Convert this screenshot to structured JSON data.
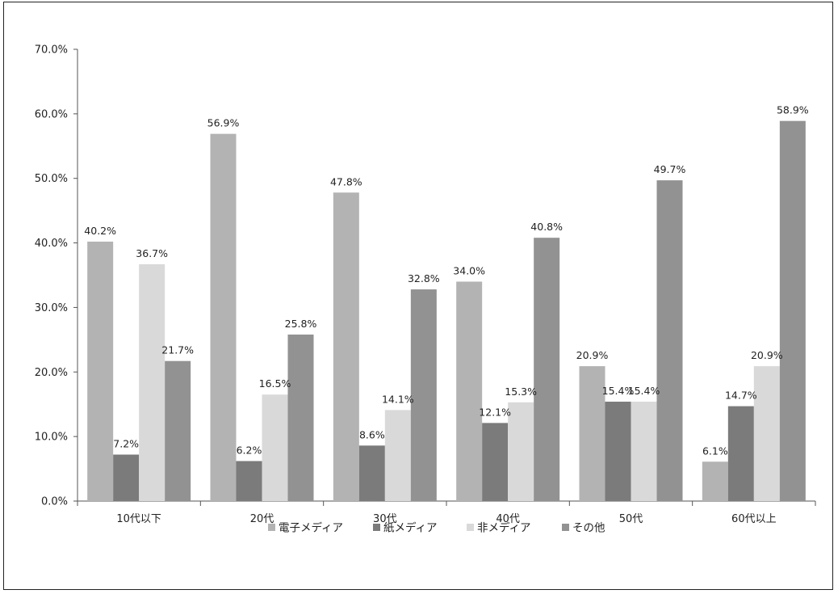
{
  "chart_data": {
    "type": "bar",
    "categories": [
      "10代以下",
      "20代",
      "30代",
      "40代",
      "50代",
      "60代以上"
    ],
    "series": [
      {
        "name": "電子メディア",
        "color": "#b3b3b3",
        "values": [
          40.2,
          56.9,
          47.8,
          34.0,
          20.9,
          6.1
        ],
        "labels": [
          "40.2%",
          "56.9%",
          "47.8%",
          "34.0%",
          "20.9%",
          "6.1%"
        ]
      },
      {
        "name": "紙メディア",
        "color": "#7b7b7b",
        "values": [
          7.2,
          6.2,
          8.6,
          12.1,
          15.4,
          14.7
        ],
        "labels": [
          "7.2%",
          "6.2%",
          "8.6%",
          "12.1%",
          "15.4%",
          "14.7%"
        ]
      },
      {
        "name": "非メディア",
        "color": "#d9d9d9",
        "values": [
          36.7,
          16.5,
          14.1,
          15.3,
          15.4,
          20.9
        ],
        "labels": [
          "36.7%",
          "16.5%",
          "14.1%",
          "15.3%",
          "15.4%",
          "20.9%"
        ]
      },
      {
        "name": "その他",
        "color": "#929292",
        "values": [
          21.7,
          25.8,
          32.8,
          40.8,
          49.7,
          58.9
        ],
        "labels": [
          "21.7%",
          "25.8%",
          "32.8%",
          "40.8%",
          "49.7%",
          "58.9%"
        ]
      }
    ],
    "ylim": [
      0,
      70
    ],
    "yticks": [
      "0.0%",
      "10.0%",
      "20.0%",
      "30.0%",
      "40.0%",
      "50.0%",
      "60.0%",
      "70.0%"
    ],
    "legend_position": "bottom",
    "grid": false
  }
}
